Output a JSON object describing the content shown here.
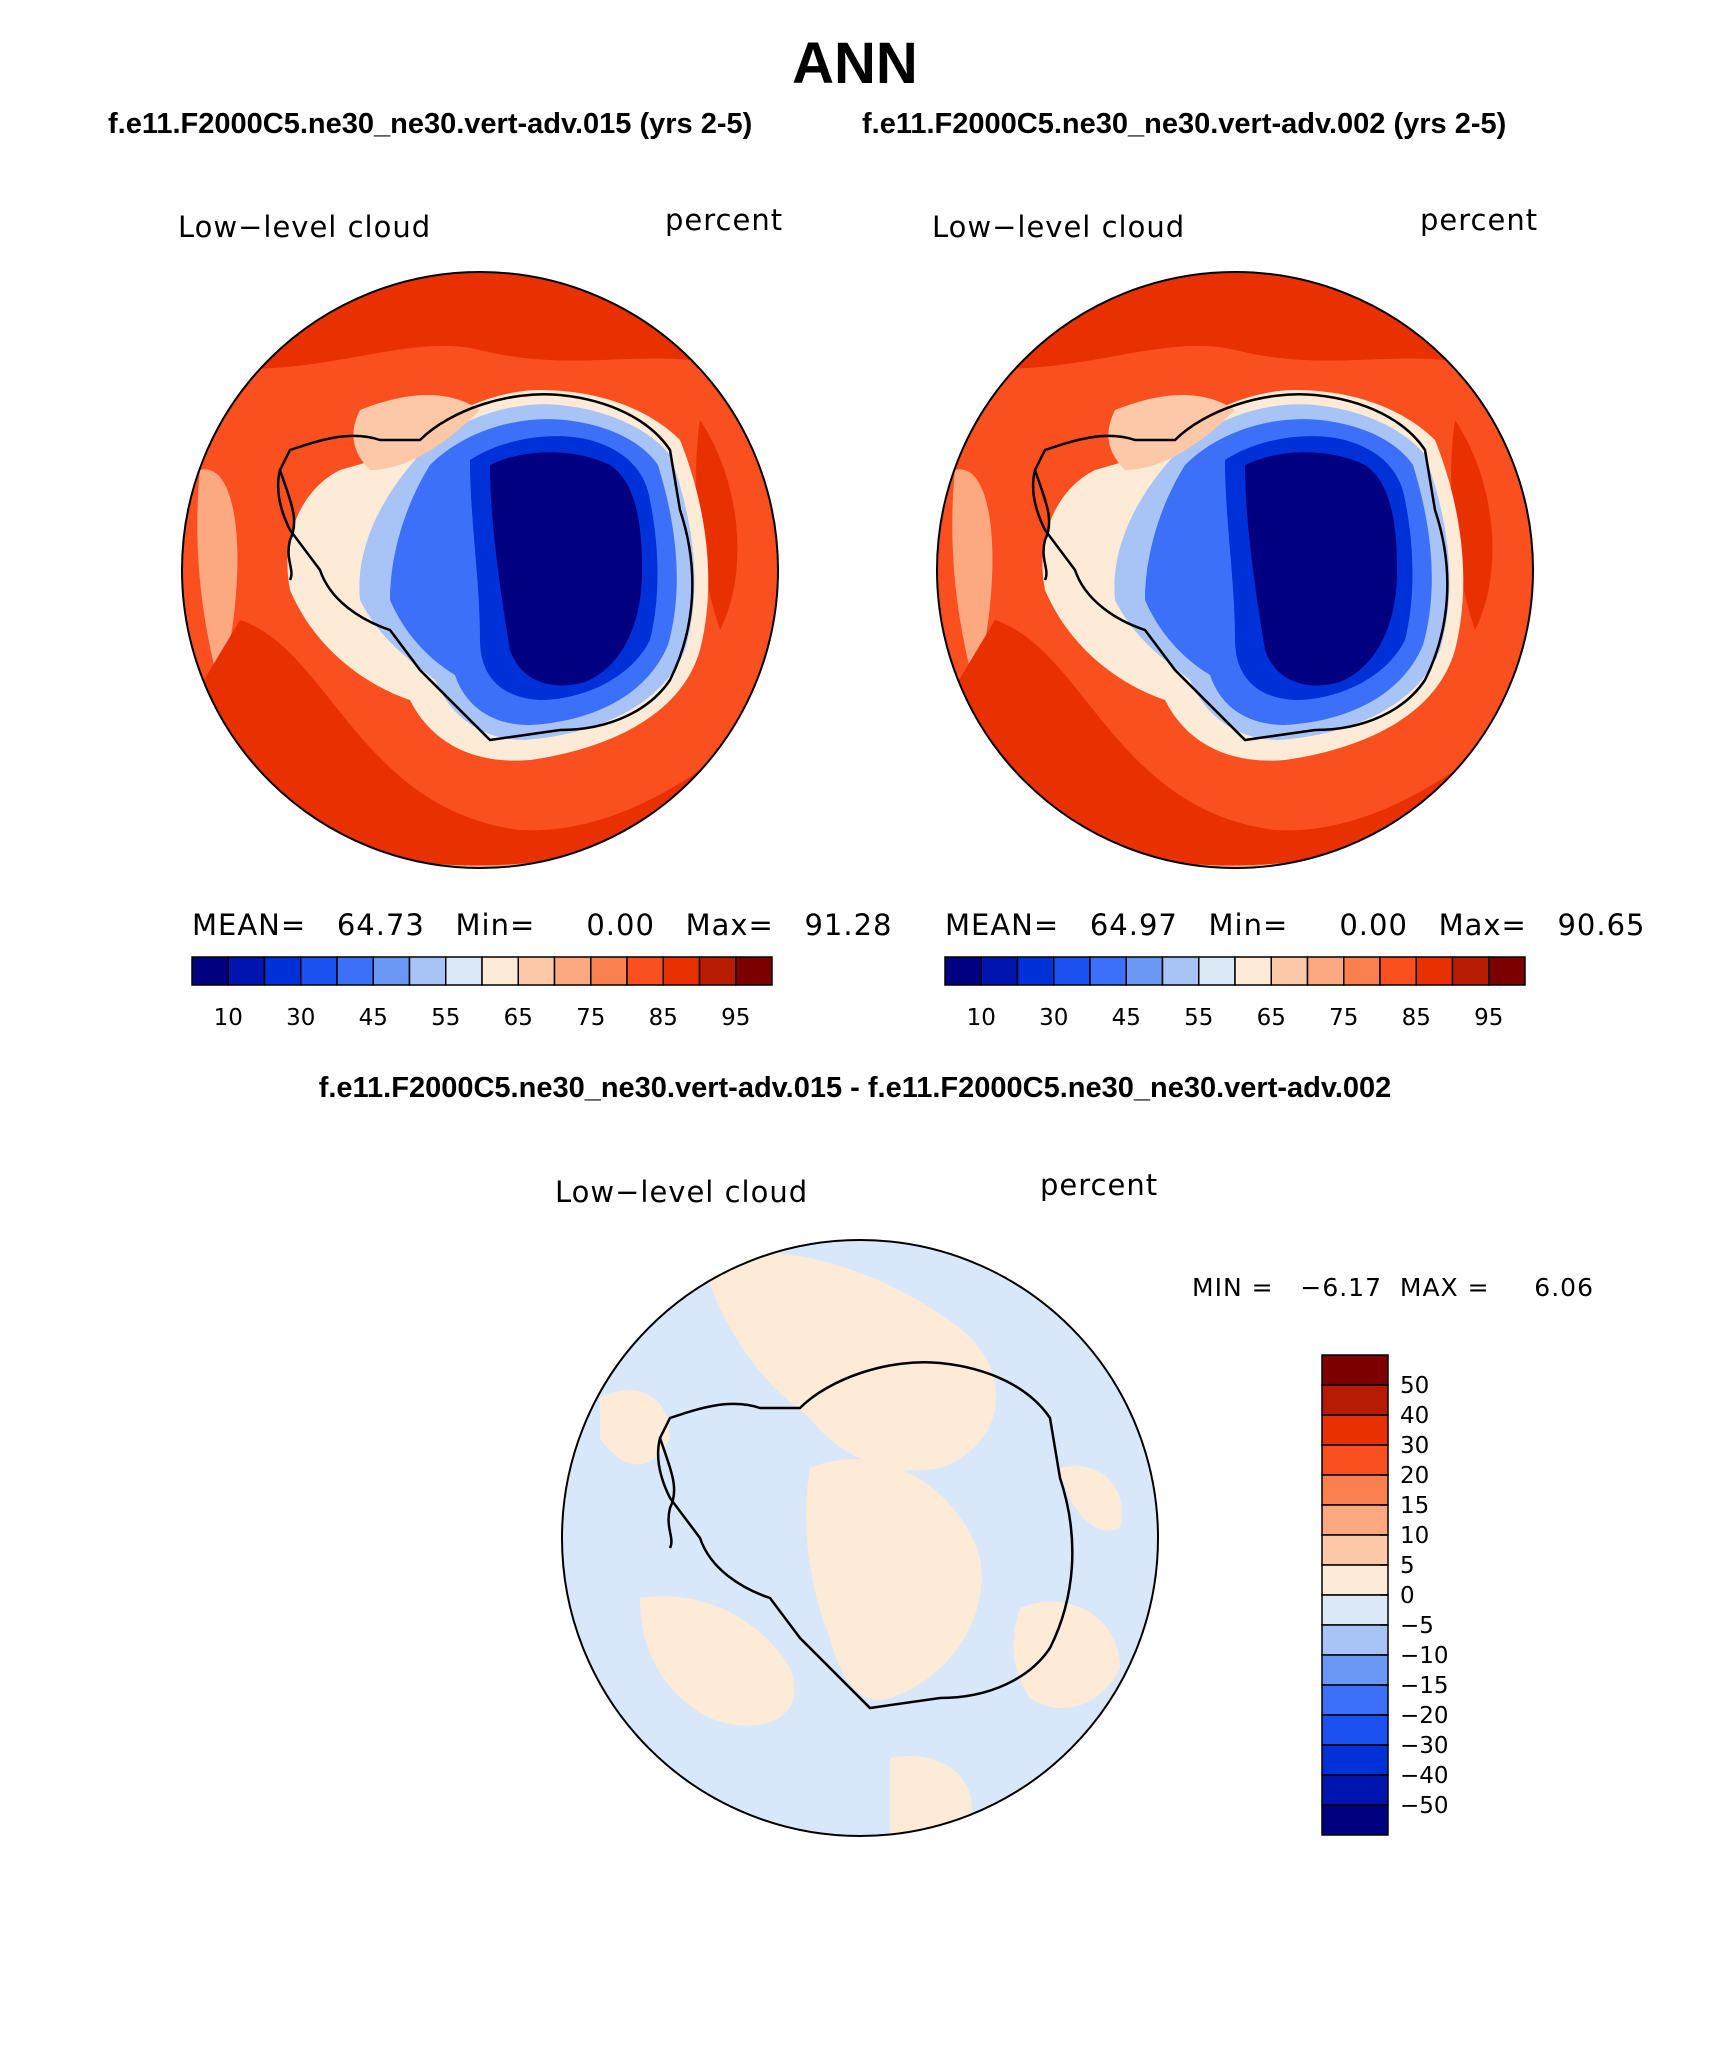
{
  "header": {
    "main_title": "ANN",
    "left_case": "f.e11.F2000C5.ne30_ne30.vert-adv.015 (yrs 2-5)",
    "right_case": "f.e11.F2000C5.ne30_ne30.vert-adv.002 (yrs 2-5)",
    "diff_title": "f.e11.F2000C5.ne30_ne30.vert-adv.015 - f.e11.F2000C5.ne30_ne30.vert-adv.002"
  },
  "panels": {
    "left": {
      "variable": "Low−level cloud",
      "units": "percent",
      "stats": "MEAN=   64.73   Min=     0.00   Max=   91.28"
    },
    "right": {
      "variable": "Low−level cloud",
      "units": "percent",
      "stats": "MEAN=   64.97   Min=     0.00   Max=   90.65"
    },
    "diff": {
      "variable": "Low−level cloud",
      "units": "percent",
      "stats": "MIN =   −6.17  MAX =     6.06"
    }
  },
  "colorbars": {
    "abs": {
      "colors": [
        "#000080",
        "#0015b0",
        "#0030d8",
        "#1a50f0",
        "#3c70f8",
        "#6a96f4",
        "#a8c4f6",
        "#dbe8f8",
        "#fdebd8",
        "#fdc8a8",
        "#fca880",
        "#fa8050",
        "#fa5020",
        "#e83000",
        "#b81c00",
        "#7c0000"
      ],
      "tick_labels": [
        "10",
        "30",
        "45",
        "55",
        "65",
        "75",
        "85",
        "95"
      ]
    },
    "diff": {
      "colors": [
        "#000080",
        "#0015b0",
        "#0030d8",
        "#1a50f0",
        "#3c70f8",
        "#6a96f4",
        "#a8c4f6",
        "#dbe8f8",
        "#fdebd8",
        "#fdc8a8",
        "#fca880",
        "#fa8050",
        "#fa5020",
        "#e83000",
        "#b81c00",
        "#7c0000"
      ],
      "tick_labels": [
        "50",
        "40",
        "30",
        "20",
        "15",
        "10",
        "5",
        "0",
        "−5",
        "−10",
        "−15",
        "−20",
        "−30",
        "−40",
        "−50"
      ]
    }
  }
}
